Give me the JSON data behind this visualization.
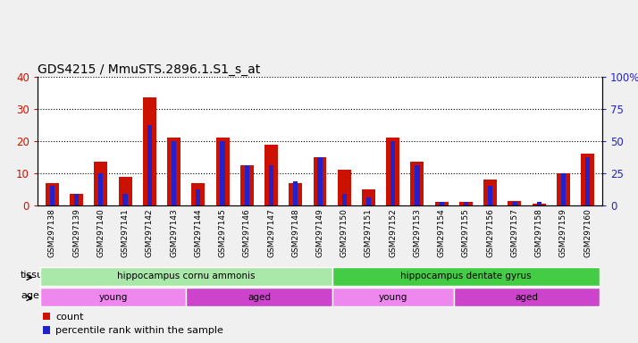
{
  "title": "GDS4215 / MmuSTS.2896.1.S1_s_at",
  "samples": [
    "GSM297138",
    "GSM297139",
    "GSM297140",
    "GSM297141",
    "GSM297142",
    "GSM297143",
    "GSM297144",
    "GSM297145",
    "GSM297146",
    "GSM297147",
    "GSM297148",
    "GSM297149",
    "GSM297150",
    "GSM297151",
    "GSM297152",
    "GSM297153",
    "GSM297154",
    "GSM297155",
    "GSM297156",
    "GSM297157",
    "GSM297158",
    "GSM297159",
    "GSM297160"
  ],
  "count_values": [
    7,
    3.5,
    13.5,
    9,
    33.5,
    21,
    7,
    21,
    12.5,
    19,
    7,
    15,
    11,
    5,
    21,
    13.5,
    1,
    1,
    8,
    1.5,
    0.5,
    10,
    16
  ],
  "percentile_values": [
    6.25,
    3.75,
    10,
    3.75,
    25,
    20,
    5,
    20,
    12.5,
    12.5,
    7.5,
    15,
    3.75,
    2.5,
    20,
    12.5,
    1.25,
    1.25,
    6.25,
    1.25,
    1.25,
    10,
    15
  ],
  "ylim_left": [
    0,
    40
  ],
  "ylim_right": [
    0,
    100
  ],
  "yticks_left": [
    0,
    10,
    20,
    30,
    40
  ],
  "yticks_right": [
    0,
    25,
    50,
    75,
    100
  ],
  "bar_color_count": "#cc1100",
  "bar_color_percentile": "#2222cc",
  "bar_width": 0.55,
  "tissue_groups": [
    {
      "label": "hippocampus cornu ammonis",
      "start": 0,
      "end": 12,
      "color": "#aae8aa"
    },
    {
      "label": "hippocampus dentate gyrus",
      "start": 12,
      "end": 23,
      "color": "#44cc44"
    }
  ],
  "age_groups": [
    {
      "label": "young",
      "start": 0,
      "end": 6,
      "color": "#ee88ee"
    },
    {
      "label": "aged",
      "start": 6,
      "end": 12,
      "color": "#cc44cc"
    },
    {
      "label": "young",
      "start": 12,
      "end": 17,
      "color": "#ee88ee"
    },
    {
      "label": "aged",
      "start": 17,
      "end": 23,
      "color": "#cc44cc"
    }
  ],
  "tissue_label": "tissue",
  "age_label": "age",
  "legend_count": "count",
  "legend_percentile": "percentile rank within the sample",
  "fig_bg": "#f0f0f0",
  "plot_bg": "#ffffff",
  "xticklabel_area_bg": "#d8d8d8",
  "title_fontsize": 10,
  "tick_fontsize": 6.5
}
